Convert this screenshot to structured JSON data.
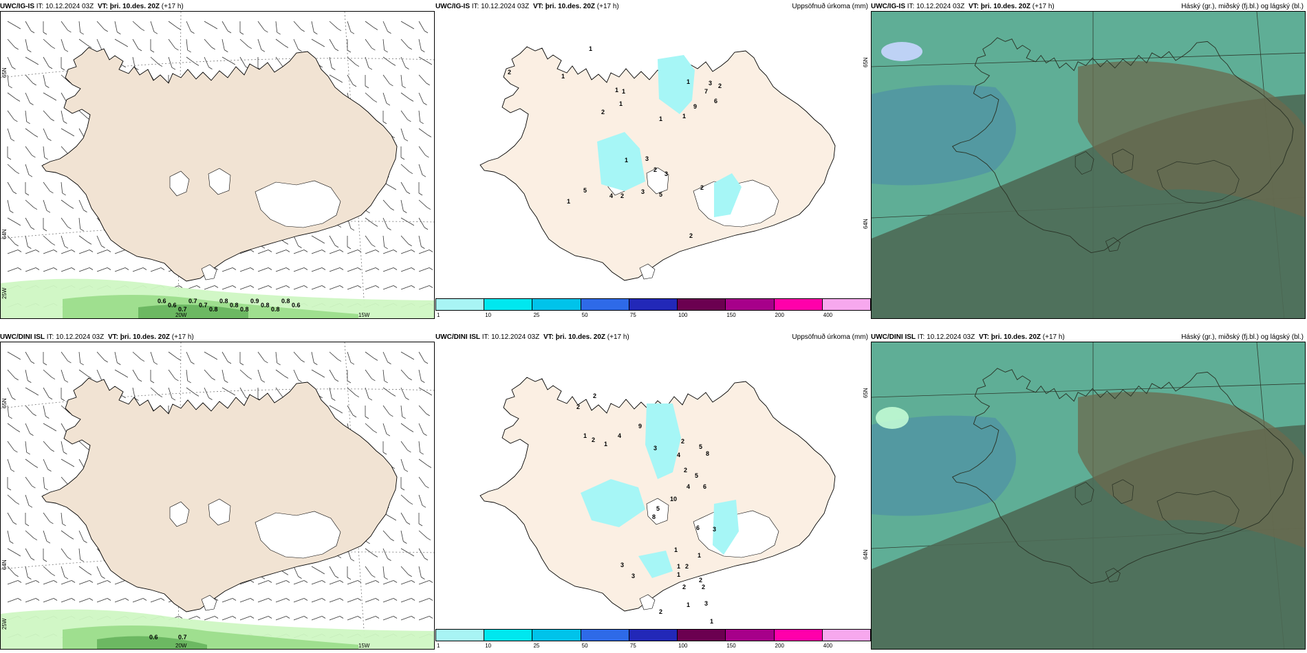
{
  "colors": {
    "land": "#f1e3d3",
    "land_precip": "#fbefe3",
    "precip_light": "#a6f6f6",
    "snowfall_light": "#cff7c3",
    "snowfall_mid": "#9fdf8f",
    "snowfall_dark": "#6cb862",
    "cloud_sea": "#5fae96",
    "cloud_dark": "#4e6a55",
    "cloud_brown": "#6b6a4e"
  },
  "rows": [
    {
      "model": "UWC/IG-IS",
      "panels": {
        "wind": {
          "model": "UWC/IG-IS",
          "it": "IT: 10.12.2024 03Z",
          "vt_label": "VT:",
          "vt": "þri. 10.des. 20Z",
          "lead": "(+17 h)",
          "lat_labels": [
            "65N",
            "64N",
            "25W"
          ],
          "lon_labels": [
            "20W",
            "15W"
          ],
          "snow_values": [
            "0.6",
            "0.6",
            "0.7",
            "0.7",
            "0.7",
            "0.8",
            "0.8",
            "0.8",
            "0.8",
            "0.9",
            "0.8",
            "0.8",
            "0.8",
            "0.6"
          ]
        },
        "precip": {
          "model": "UWC/IG-IS",
          "it": "IT: 10.12.2024 03Z",
          "vt_label": "VT:",
          "vt": "þri. 10.des. 20Z",
          "lead": "(+17 h)",
          "right_title": "Uppsöfnuð úrkoma (mm)",
          "lat_labels": [
            "65N",
            "64N"
          ],
          "values": [
            "2",
            "1",
            "1",
            "2",
            "1",
            "1",
            "1",
            "1",
            "9",
            "7",
            "3",
            "1",
            "6",
            "2",
            "1",
            "1",
            "3",
            "2",
            "3",
            "5",
            "5",
            "4",
            "2",
            "3",
            "2",
            "2",
            "1"
          ]
        },
        "cloud": {
          "model": "UWC/IG-IS",
          "it": "IT: 10.12.2024 03Z",
          "vt_label": "VT:",
          "vt": "þri. 10.des. 20Z",
          "lead": "(+17 h)",
          "right_title": "Háský (gr.), miðský (fj.bl.) og lágský (bl.)"
        }
      }
    },
    {
      "model": "UWC/DINI ISL",
      "panels": {
        "wind": {
          "model": "UWC/DINI ISL",
          "it": "IT: 10.12.2024 03Z",
          "vt_label": "VT:",
          "vt": "þri. 10.des. 20Z",
          "lead": "(+17 h)",
          "lat_labels": [
            "65N",
            "64N",
            "25W"
          ],
          "lon_labels": [
            "20W",
            "15W"
          ],
          "snow_values": [
            "0.6",
            "0.7"
          ]
        },
        "precip": {
          "model": "UWC/DINI ISL",
          "it": "IT: 10.12.2024 03Z",
          "vt_label": "VT:",
          "vt": "þri. 10.des. 20Z",
          "lead": "(+17 h)",
          "right_title": "Uppsöfnuð úrkoma (mm)",
          "lat_labels": [
            "65N",
            "64N"
          ],
          "values": [
            "2",
            "2",
            "1",
            "2",
            "1",
            "4",
            "9",
            "3",
            "2",
            "5",
            "4",
            "8",
            "2",
            "5",
            "6",
            "4",
            "10",
            "5",
            "8",
            "6",
            "3",
            "1",
            "2",
            "1",
            "1",
            "2",
            "3",
            "3",
            "1",
            "2",
            "2",
            "1",
            "2",
            "1",
            "3"
          ]
        },
        "cloud": {
          "model": "UWC/DINI ISL",
          "it": "IT: 10.12.2024 03Z",
          "vt_label": "VT:",
          "vt": "þri. 10.des. 20Z",
          "lead": "(+17 h)",
          "right_title": "Háský (gr.), miðský (fj.bl.) og lágský (bl.)"
        }
      }
    }
  ],
  "colorbar": {
    "colors": [
      "#a8f4f4",
      "#00e7ef",
      "#00c3ea",
      "#2e6ae8",
      "#2228b8",
      "#6b0050",
      "#a7008a",
      "#ff00aa",
      "#f7a8ee"
    ],
    "ticks": [
      "1",
      "10",
      "25",
      "50",
      "75",
      "100",
      "150",
      "200",
      "400"
    ]
  }
}
